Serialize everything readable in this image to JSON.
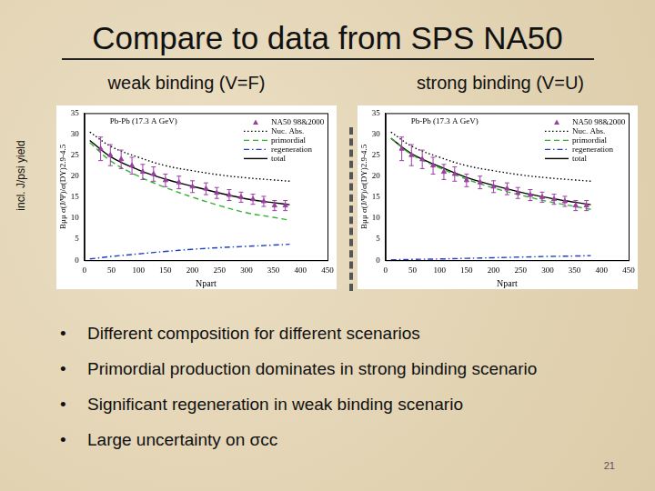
{
  "slide": {
    "title": "Compare to data from SPS NA50",
    "side_label": "incl. J/psi yield",
    "bullets": [
      "Different composition for different scenarios",
      "Primordial production dominates in strong binding scenario",
      "Significant regeneration in weak binding scenario",
      "Large uncertainty on σcc"
    ],
    "page": 21
  },
  "chart_data": [
    {
      "type": "line",
      "title": "weak binding (V=F)",
      "annotation": "Pb-Pb (17.3 A GeV)",
      "x_label": "Npart",
      "y_label": "Bμμ σ(J/Ψ)/σ(DY)2.9-4.5",
      "xlim": [
        0,
        450
      ],
      "xticks": [
        0,
        50,
        100,
        150,
        200,
        250,
        300,
        350,
        400,
        450
      ],
      "ylim": [
        0,
        35
      ],
      "yticks": [
        0,
        5,
        10,
        15,
        20,
        25,
        30,
        35
      ],
      "grid": false,
      "legend": "upper right",
      "series": [
        {
          "name": "NA50 98&2000",
          "type": "scatter",
          "marker": "triangle",
          "color": "#9a3fa0",
          "x": [
            30,
            48,
            68,
            88,
            108,
            128,
            150,
            175,
            200,
            225,
            245,
            268,
            290,
            312,
            332,
            352,
            372
          ],
          "values": [
            26.5,
            25,
            24,
            22.5,
            21,
            20.5,
            19,
            18.5,
            17.5,
            17,
            16,
            15.5,
            15,
            14.5,
            14,
            13,
            13
          ],
          "errors": [
            2.8,
            2.5,
            2.2,
            2,
            1.8,
            1.7,
            1.5,
            1.5,
            1.4,
            1.4,
            1.3,
            1.3,
            1.2,
            1.2,
            1.2,
            1.2,
            1.2
          ]
        },
        {
          "name": "Nuc. Abs.",
          "type": "line",
          "line_style": "dotted",
          "color": "#000000",
          "x": [
            10,
            50,
            100,
            150,
            200,
            250,
            300,
            350,
            380
          ],
          "values": [
            30.5,
            27,
            24.5,
            22.5,
            21.3,
            20.3,
            19.6,
            19.1,
            18.8
          ]
        },
        {
          "name": "primordial",
          "type": "line",
          "line_style": "dashed",
          "color": "#33b233",
          "x": [
            10,
            50,
            100,
            150,
            200,
            250,
            300,
            350,
            380
          ],
          "values": [
            28,
            23.5,
            20,
            17.3,
            15,
            13,
            11.3,
            10.2,
            9.5
          ]
        },
        {
          "name": "regeneration",
          "type": "line",
          "line_style": "dashdot",
          "color": "#2040c0",
          "x": [
            10,
            50,
            100,
            150,
            200,
            250,
            300,
            350,
            380
          ],
          "values": [
            0.3,
            0.9,
            1.5,
            2.1,
            2.6,
            3,
            3.3,
            3.6,
            3.8
          ]
        },
        {
          "name": "total",
          "type": "line",
          "line_style": "solid",
          "color": "#000000",
          "x": [
            10,
            50,
            100,
            150,
            200,
            250,
            300,
            350,
            380
          ],
          "values": [
            28.5,
            24.5,
            21.5,
            19.3,
            17.6,
            16,
            14.6,
            13.7,
            13.2
          ]
        }
      ]
    },
    {
      "type": "line",
      "title": "strong binding (V=U)",
      "annotation": "Pb-Pb (17.3 A GeV)",
      "x_label": "Npart",
      "y_label": "Bμμ σ(J/Ψ)/σ(DY)2.9-4.5",
      "xlim": [
        0,
        450
      ],
      "xticks": [
        0,
        50,
        100,
        150,
        200,
        250,
        300,
        350,
        400,
        450
      ],
      "ylim": [
        0,
        35
      ],
      "yticks": [
        0,
        5,
        10,
        15,
        20,
        25,
        30,
        35
      ],
      "grid": false,
      "legend": "upper right",
      "series": [
        {
          "name": "NA50 98&2000",
          "type": "scatter",
          "marker": "triangle",
          "color": "#9a3fa0",
          "x": [
            30,
            48,
            68,
            88,
            108,
            128,
            150,
            175,
            200,
            225,
            245,
            268,
            290,
            312,
            332,
            352,
            372
          ],
          "values": [
            26.5,
            25,
            24,
            22.5,
            21,
            20.5,
            19,
            18.5,
            17.5,
            17,
            16,
            15.5,
            15,
            14.5,
            14,
            13,
            13
          ],
          "errors": [
            2.8,
            2.5,
            2.2,
            2,
            1.8,
            1.7,
            1.5,
            1.5,
            1.4,
            1.4,
            1.3,
            1.3,
            1.2,
            1.2,
            1.2,
            1.2,
            1.2
          ]
        },
        {
          "name": "Nuc. Abs.",
          "type": "line",
          "line_style": "dotted",
          "color": "#000000",
          "x": [
            10,
            50,
            100,
            150,
            200,
            250,
            300,
            350,
            380
          ],
          "values": [
            30.5,
            27,
            24.5,
            22.5,
            21.3,
            20.3,
            19.6,
            19.1,
            18.8
          ]
        },
        {
          "name": "primordial",
          "type": "line",
          "line_style": "dashed",
          "color": "#33b233",
          "x": [
            10,
            50,
            100,
            150,
            200,
            250,
            300,
            350,
            380
          ],
          "values": [
            29,
            25,
            22,
            19.3,
            17.2,
            15.5,
            14,
            12.8,
            12.1
          ]
        },
        {
          "name": "regeneration",
          "type": "line",
          "line_style": "dashdot",
          "color": "#2040c0",
          "x": [
            10,
            50,
            100,
            150,
            200,
            250,
            300,
            350,
            380
          ],
          "values": [
            0.1,
            0.2,
            0.3,
            0.45,
            0.6,
            0.75,
            0.9,
            1,
            1.1
          ]
        },
        {
          "name": "total",
          "type": "line",
          "line_style": "solid",
          "color": "#000000",
          "x": [
            10,
            50,
            100,
            150,
            200,
            250,
            300,
            350,
            380
          ],
          "values": [
            29,
            25.2,
            22.3,
            19.7,
            17.8,
            16.2,
            14.9,
            13.8,
            13.2
          ]
        }
      ]
    }
  ]
}
